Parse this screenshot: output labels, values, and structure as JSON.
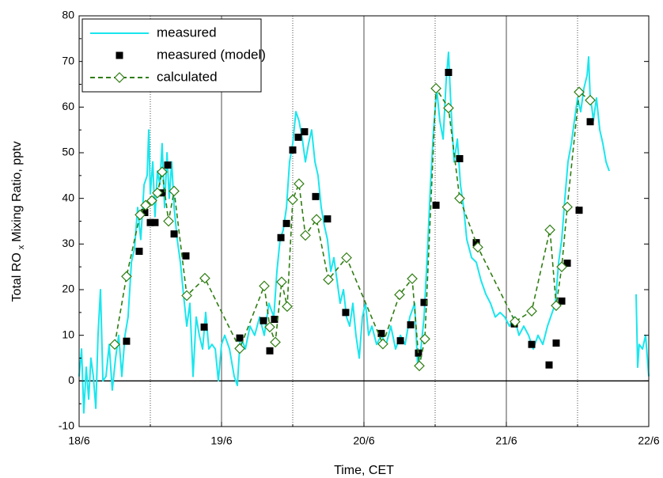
{
  "chart_data": {
    "type": "line",
    "xlabel": "Time, CET",
    "ylabel": {
      "main": "Total RO",
      "sub": "x",
      "rest": "Mixing Ratio, pptv"
    },
    "xlim": [
      0,
      4
    ],
    "xticks": [
      {
        "value": 0,
        "label": "18/6"
      },
      {
        "value": 1,
        "label": "19/6"
      },
      {
        "value": 2,
        "label": "20/6"
      },
      {
        "value": 3,
        "label": "21/6"
      },
      {
        "value": 4,
        "label": "22/6"
      }
    ],
    "ylim": [
      -10,
      80
    ],
    "yticks": [
      -10,
      0,
      10,
      20,
      30,
      40,
      50,
      60,
      70,
      80
    ],
    "grid": true,
    "zero_line": true,
    "legend": "upper left",
    "series": [
      {
        "name": "measured",
        "color": "#19e6ee",
        "marker": "none",
        "line": "solid",
        "x": [
          0,
          0.017,
          0.033,
          0.05,
          0.067,
          0.083,
          0.1,
          0.117,
          0.133,
          0.15,
          0.167,
          0.189,
          0.211,
          0.233,
          0.256,
          0.278,
          0.3,
          0.322,
          0.344,
          0.367,
          0.389,
          0.411,
          0.433,
          0.456,
          0.478,
          0.489,
          0.5,
          0.517,
          0.533,
          0.55,
          0.567,
          0.583,
          0.6,
          0.617,
          0.633,
          0.65,
          0.667,
          0.689,
          0.711,
          0.733,
          0.756,
          0.778,
          0.8,
          0.822,
          0.844,
          0.867,
          0.889,
          0.911,
          0.933,
          0.956,
          0.978,
          1.0,
          1.022,
          1.056,
          1.089,
          1.111,
          1.133,
          1.167,
          1.2,
          1.233,
          1.267,
          1.3,
          1.333,
          1.367,
          1.389,
          1.411,
          1.433,
          1.456,
          1.478,
          1.5,
          1.522,
          1.544,
          1.567,
          1.589,
          1.611,
          1.633,
          1.656,
          1.678,
          1.7,
          1.722,
          1.744,
          1.767,
          1.789,
          1.811,
          1.833,
          1.856,
          1.878,
          1.9,
          1.922,
          1.944,
          1.967,
          1.989,
          2.011,
          2.033,
          2.056,
          2.089,
          2.122,
          2.156,
          2.189,
          2.222,
          2.256,
          2.289,
          2.322,
          2.356,
          2.378,
          2.4,
          2.422,
          2.444,
          2.467,
          2.489,
          2.511,
          2.533,
          2.556,
          2.578,
          2.594,
          2.611,
          2.633,
          2.656,
          2.678,
          2.7,
          2.722,
          2.756,
          2.789,
          2.822,
          2.856,
          2.889,
          2.922,
          2.956,
          2.989,
          3.022,
          3.056,
          3.089,
          3.122,
          3.156,
          3.189,
          3.222,
          3.256,
          3.289,
          3.322,
          3.344,
          3.367,
          3.389,
          3.411,
          3.433,
          3.456,
          3.478,
          3.5,
          3.522,
          3.544,
          3.567,
          3.578,
          3.589,
          3.6,
          3.611,
          3.633,
          3.656,
          3.678,
          3.7,
          3.722,
          3.8,
          3.911,
          3.922,
          3.933,
          3.956,
          3.978,
          4.0
        ],
        "values": [
          1,
          7,
          -7,
          3,
          -4,
          5,
          1,
          -6,
          10,
          20,
          0,
          1,
          8,
          -2,
          5,
          10,
          1,
          10,
          14,
          26,
          29,
          38,
          31,
          43,
          45,
          55,
          41,
          48,
          36,
          46,
          43,
          52,
          38,
          50,
          40,
          48,
          38,
          31,
          26,
          19,
          12,
          17,
          1,
          14,
          10,
          7,
          15,
          7,
          8,
          7,
          0,
          8,
          10,
          7,
          1,
          -1,
          10,
          7,
          12,
          10,
          14,
          10,
          17,
          14,
          24,
          31,
          33,
          38,
          48,
          52,
          59,
          57,
          53,
          48,
          52,
          55,
          48,
          45,
          38,
          34,
          31,
          24,
          27,
          22,
          17,
          20,
          14,
          12,
          17,
          10,
          5,
          14,
          17,
          10,
          12,
          8,
          10,
          8,
          12,
          7,
          10,
          8,
          14,
          17,
          3,
          7,
          14,
          27,
          43,
          55,
          64,
          57,
          53,
          66,
          72,
          60,
          48,
          53,
          43,
          38,
          31,
          27,
          26,
          22,
          19,
          17,
          14,
          15,
          14,
          12,
          14,
          10,
          12,
          10,
          7,
          10,
          8,
          12,
          15,
          17,
          26,
          31,
          40,
          48,
          52,
          57,
          62,
          59,
          64,
          67,
          71,
          62,
          60,
          57,
          62,
          55,
          52,
          48,
          46,
          null,
          19,
          3,
          8,
          7,
          10,
          1
        ]
      },
      {
        "name": "measured (model)",
        "color": "#000000",
        "marker": "square",
        "line": "none",
        "x": [
          0.333,
          0.422,
          0.461,
          0.5,
          0.533,
          0.583,
          0.622,
          0.667,
          0.75,
          0.878,
          1.128,
          1.294,
          1.339,
          1.372,
          1.417,
          1.456,
          1.5,
          1.539,
          1.583,
          1.661,
          1.744,
          1.872,
          2.122,
          2.256,
          2.328,
          2.383,
          2.422,
          2.506,
          2.594,
          2.672,
          2.789,
          3.056,
          3.178,
          3.3,
          3.35,
          3.389,
          3.428,
          3.511,
          3.589
        ],
        "values": [
          8.7,
          28.4,
          36.9,
          34.7,
          34.7,
          41.2,
          47.3,
          32.2,
          27.4,
          11.8,
          9.4,
          13.2,
          6.6,
          13.5,
          31.4,
          34.5,
          50.6,
          53.4,
          54.6,
          40.4,
          35.5,
          15,
          10.4,
          8.8,
          12.3,
          6.1,
          17.2,
          38.5,
          67.6,
          48.7,
          30.3,
          12.5,
          8,
          3.5,
          8.3,
          17.5,
          25.8,
          37.4,
          56.8
        ]
      },
      {
        "name": "calculated",
        "color": "#2f7d12",
        "marker": "diamond",
        "line": "dashed",
        "x": [
          0.25,
          0.333,
          0.428,
          0.467,
          0.511,
          0.55,
          0.583,
          0.628,
          0.667,
          0.756,
          0.883,
          1.128,
          1.3,
          1.339,
          1.378,
          1.422,
          1.461,
          1.5,
          1.544,
          1.589,
          1.667,
          1.75,
          1.878,
          2.133,
          2.25,
          2.339,
          2.389,
          2.428,
          2.506,
          2.594,
          2.672,
          2.8,
          3.061,
          3.178,
          3.306,
          3.35,
          3.389,
          3.428,
          3.511,
          3.589
        ],
        "values": [
          8,
          22.9,
          36.4,
          38.5,
          39.5,
          41.2,
          45.8,
          35,
          41.6,
          18.7,
          22.5,
          7.1,
          20.8,
          11.8,
          8.5,
          21.7,
          16.3,
          39.7,
          43.2,
          31.9,
          35.4,
          22.2,
          27,
          8.1,
          18.9,
          22.4,
          3.3,
          9.2,
          64.1,
          59.8,
          40,
          29.3,
          13,
          15.3,
          33.1,
          16.5,
          25,
          38.1,
          63.3,
          61.5
        ]
      }
    ]
  }
}
